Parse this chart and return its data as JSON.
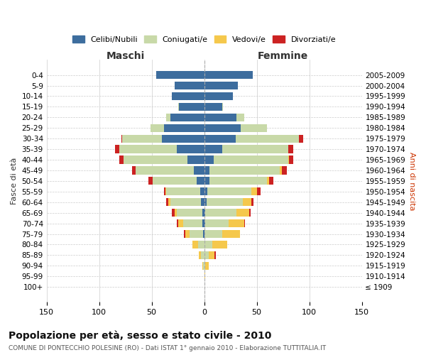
{
  "age_groups": [
    "100+",
    "95-99",
    "90-94",
    "85-89",
    "80-84",
    "75-79",
    "70-74",
    "65-69",
    "60-64",
    "55-59",
    "50-54",
    "45-49",
    "40-44",
    "35-39",
    "30-34",
    "25-29",
    "20-24",
    "15-19",
    "10-14",
    "5-9",
    "0-4"
  ],
  "birth_years": [
    "≤ 1909",
    "1910-1914",
    "1915-1919",
    "1920-1924",
    "1925-1929",
    "1930-1934",
    "1935-1939",
    "1940-1944",
    "1945-1949",
    "1950-1954",
    "1955-1959",
    "1960-1964",
    "1965-1969",
    "1970-1974",
    "1975-1979",
    "1980-1984",
    "1985-1989",
    "1990-1994",
    "1995-1999",
    "2000-2004",
    "2005-2009"
  ],
  "colors": {
    "celibi": "#3d6d9e",
    "coniugati": "#c8d9a8",
    "vedovi": "#f5c84c",
    "divorziati": "#cc2222"
  },
  "maschi": {
    "celibi": [
      0,
      0,
      0,
      0,
      0,
      1,
      2,
      2,
      3,
      4,
      7,
      10,
      16,
      26,
      40,
      38,
      32,
      24,
      31,
      28,
      46
    ],
    "coniugati": [
      0,
      0,
      1,
      3,
      6,
      13,
      18,
      24,
      29,
      32,
      42,
      55,
      61,
      55,
      38,
      13,
      4,
      1,
      0,
      0,
      0
    ],
    "vedovi": [
      0,
      0,
      1,
      2,
      5,
      4,
      5,
      2,
      2,
      1,
      0,
      0,
      0,
      0,
      0,
      0,
      0,
      0,
      0,
      0,
      0
    ],
    "divorziati": [
      0,
      0,
      0,
      0,
      0,
      1,
      1,
      3,
      2,
      1,
      4,
      4,
      4,
      4,
      1,
      0,
      0,
      0,
      0,
      0,
      0
    ]
  },
  "femmine": {
    "nubili": [
      0,
      0,
      0,
      0,
      0,
      0,
      1,
      1,
      2,
      3,
      5,
      5,
      9,
      17,
      30,
      35,
      31,
      17,
      27,
      32,
      46
    ],
    "coniugate": [
      0,
      0,
      1,
      4,
      8,
      17,
      22,
      30,
      35,
      42,
      55,
      67,
      71,
      63,
      60,
      25,
      7,
      1,
      0,
      0,
      0
    ],
    "vedove": [
      0,
      1,
      3,
      6,
      14,
      17,
      15,
      12,
      8,
      5,
      2,
      2,
      1,
      0,
      0,
      0,
      0,
      0,
      0,
      0,
      0
    ],
    "divorziate": [
      0,
      0,
      0,
      1,
      0,
      0,
      1,
      1,
      2,
      4,
      4,
      5,
      4,
      5,
      4,
      0,
      0,
      0,
      0,
      0,
      0
    ]
  },
  "title": "Popolazione per età, sesso e stato civile - 2010",
  "subtitle": "COMUNE DI PONTECCHIO POLESINE (RO) - Dati ISTAT 1° gennaio 2010 - Elaborazione TUTTITALIA.IT",
  "ylabel_left": "Fasce di età",
  "ylabel_right": "Anni di nascita",
  "xlabel_maschi": "Maschi",
  "xlabel_femmine": "Femmine",
  "xlim": 150,
  "legend_labels": [
    "Celibi/Nubili",
    "Coniugati/e",
    "Vedovi/e",
    "Divorziati/e"
  ],
  "background_color": "#ffffff",
  "grid_color": "#cccccc"
}
